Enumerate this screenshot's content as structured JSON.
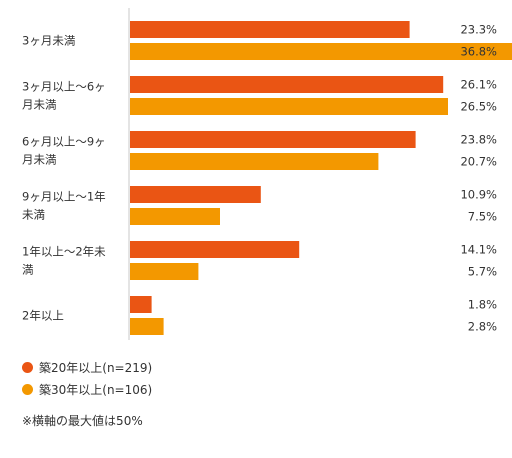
{
  "chart_data": {
    "type": "bar",
    "orientation": "horizontal",
    "categories": [
      [
        "3ヶ月未満"
      ],
      [
        "3ヶ月以上〜6ヶ",
        "月未満"
      ],
      [
        "6ヶ月以上〜9ヶ",
        "月未満"
      ],
      [
        "9ヶ月以上〜1年",
        "未満"
      ],
      [
        "1年以上〜2年未",
        "満"
      ],
      [
        "2年以上"
      ]
    ],
    "series": [
      {
        "name": "築20年以上(n=219)",
        "color": "#ea5514",
        "values": [
          23.3,
          26.1,
          23.8,
          10.9,
          14.1,
          1.8
        ]
      },
      {
        "name": "築30年以上(n=106)",
        "color": "#f39800",
        "values": [
          36.8,
          26.5,
          20.7,
          7.5,
          5.7,
          2.8
        ]
      }
    ],
    "value_labels": [
      [
        "23.3%",
        "26.1%",
        "23.8%",
        "10.9%",
        "14.1%",
        "1.8%"
      ],
      [
        "36.8%",
        "26.5%",
        "20.7%",
        "7.5%",
        "5.7%",
        "2.8%"
      ]
    ],
    "xlim": [
      0,
      50
    ],
    "unit": "%",
    "grid": false,
    "legend_position": "bottom-left"
  },
  "legend": {
    "a_label": "築20年以上(n=219)",
    "b_label": "築30年以上(n=106)",
    "a_color": "#ea5514",
    "b_color": "#f39800"
  },
  "note": "※横軸の最大値は50%"
}
